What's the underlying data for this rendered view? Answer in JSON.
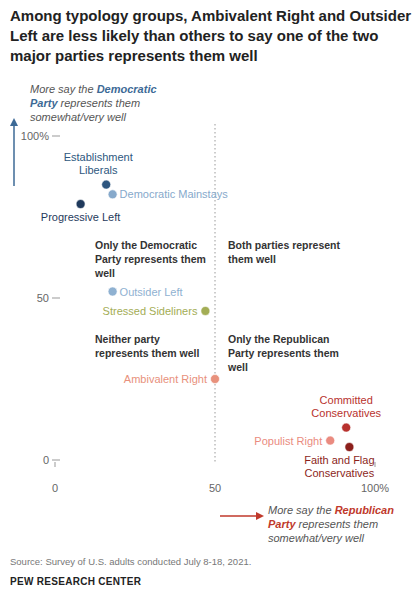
{
  "chart_data": {
    "type": "scatter",
    "title": "Among typology groups, Ambivalent Right and Outsider Left are less likely than others to say one of the two major parties represents them well",
    "y_label": "More say the Democratic Party represents them somewhat/very well",
    "y_label_emphasis": "Democratic Party",
    "x_label": "More say the Republican Party represents them somewhat/very well",
    "x_label_emphasis": "Republican Party",
    "labels": [
      "Establishment Liberals",
      "Democratic Mainstays",
      "Progressive Left",
      "Outsider Left",
      "Stressed Sideliners",
      "Ambivalent Right",
      "Committed Conservatives",
      "Populist Right",
      "Faith and Flag Conservatives"
    ],
    "x": [
      16,
      18,
      8,
      18,
      47,
      50,
      91,
      86,
      92
    ],
    "values": [
      85,
      82,
      79,
      52,
      46,
      25,
      10,
      6,
      4
    ],
    "colors": [
      "#2e5780",
      "#86a9cb",
      "#1f3a5c",
      "#8fb1d1",
      "#a3ad55",
      "#e8917c",
      "#b8322e",
      "#ea8b80",
      "#8c1f1b"
    ],
    "xlim": [
      0,
      100
    ],
    "ylim": [
      0,
      100
    ],
    "xticks": [
      0,
      50,
      {
        "value": 100,
        "label": "100%"
      }
    ],
    "yticks": [
      0,
      50,
      {
        "value": 100,
        "label": "100%"
      }
    ],
    "grid": false,
    "annotations": [
      "Only the Democratic Party represents them well",
      "Both parties represent them well",
      "Neither party represents them well",
      "Only the Republican Party represents them well"
    ],
    "source": "Source: Survey of U.S. adults conducted July 8-18, 2021.",
    "credit": "PEW RESEARCH CENTER"
  }
}
